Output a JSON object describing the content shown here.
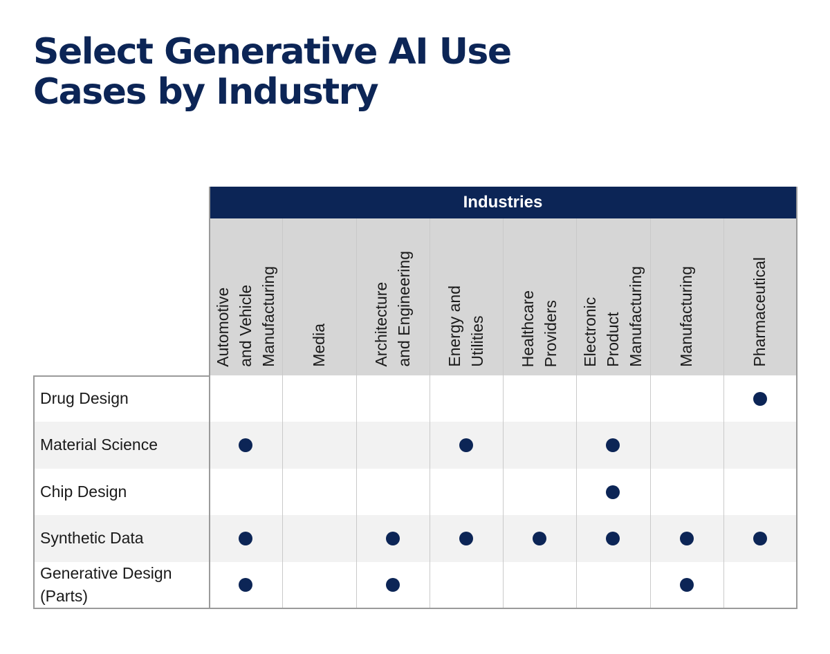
{
  "title": [
    "Select Generative AI Use",
    "Cases by Industry"
  ],
  "chart_data": {
    "type": "table",
    "header_group": "Industries",
    "columns": [
      [
        "Automotive",
        "and Vehicle",
        "Manufacturing"
      ],
      [
        "Media"
      ],
      [
        "Architecture",
        "and Engineering"
      ],
      [
        "Energy and",
        "Utilities"
      ],
      [
        "Healthcare",
        "Providers"
      ],
      [
        "Electronic",
        "Product",
        "Manufacturing"
      ],
      [
        "Manufacturing"
      ],
      [
        "Pharmaceutical"
      ]
    ],
    "rows": [
      {
        "label": [
          "Drug Design"
        ],
        "marks": [
          false,
          false,
          false,
          false,
          false,
          false,
          false,
          true
        ]
      },
      {
        "label": [
          "Material Science"
        ],
        "marks": [
          true,
          false,
          false,
          true,
          false,
          true,
          false,
          false
        ]
      },
      {
        "label": [
          "Chip Design"
        ],
        "marks": [
          false,
          false,
          false,
          false,
          false,
          true,
          false,
          false
        ]
      },
      {
        "label": [
          "Synthetic Data"
        ],
        "marks": [
          true,
          false,
          true,
          true,
          true,
          true,
          true,
          true
        ]
      },
      {
        "label": [
          "Generative Design",
          "(Parts)"
        ],
        "marks": [
          true,
          false,
          true,
          false,
          false,
          false,
          true,
          false
        ]
      }
    ]
  },
  "colors": {
    "navy": "#0c2556",
    "header_gray": "#d6d6d6",
    "stripe": "#f2f2f2"
  }
}
